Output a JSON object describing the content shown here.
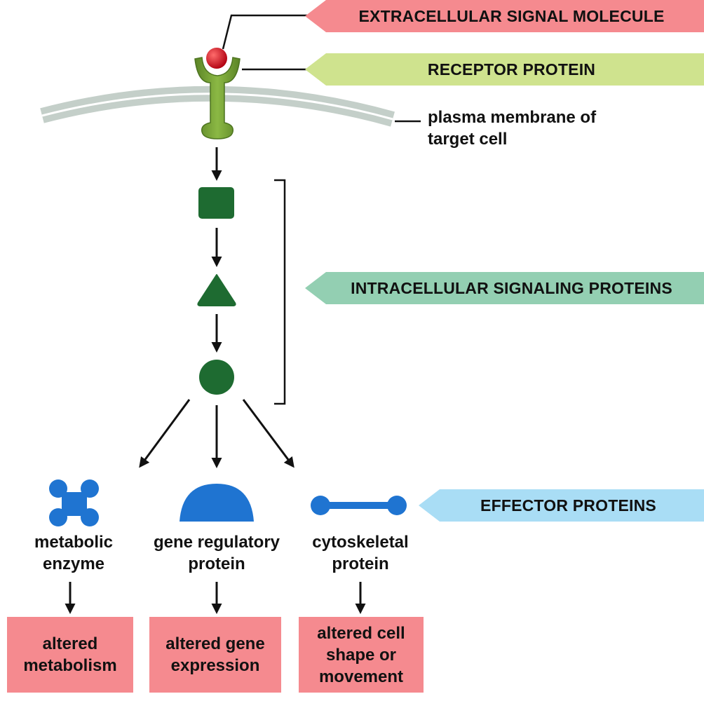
{
  "banners": {
    "signal": "EXTRACELLULAR SIGNAL MOLECULE",
    "receptor": "RECEPTOR PROTEIN",
    "intracellular": "INTRACELLULAR SIGNALING PROTEINS",
    "effector": "EFFECTOR PROTEINS"
  },
  "membrane_label": "plasma membrane of\ntarget cell",
  "effectors": {
    "enzyme": "metabolic\nenzyme",
    "gene_regulatory": "gene regulatory\nprotein",
    "cytoskeletal": "cytoskeletal\nprotein"
  },
  "outcomes": {
    "metabolism": "altered\nmetabolism",
    "gene_expression": "altered gene\nexpression",
    "shape": "altered cell\nshape or\nmovement"
  },
  "colors": {
    "signal_banner": "#f58a8f",
    "receptor_banner": "#cfe38e",
    "intracellular_banner": "#93cfb2",
    "effector_banner": "#a9ddf5",
    "outcome_box": "#f58a8f",
    "receptor": "#6e9a2c",
    "signal_molecule": "#d9141c",
    "intracellular_protein": "#1e6b31",
    "effector_protein": "#1f74d1",
    "membrane": "#c4cfc9"
  },
  "icons": {
    "receptor": "receptor-protein-icon",
    "signal": "signal-molecule-icon",
    "square": "intracellular-square-icon",
    "triangle": "intracellular-triangle-icon",
    "circle": "intracellular-circle-icon",
    "enzyme": "metabolic-enzyme-icon",
    "gene": "gene-regulatory-protein-icon",
    "cyto": "cytoskeletal-protein-icon"
  }
}
